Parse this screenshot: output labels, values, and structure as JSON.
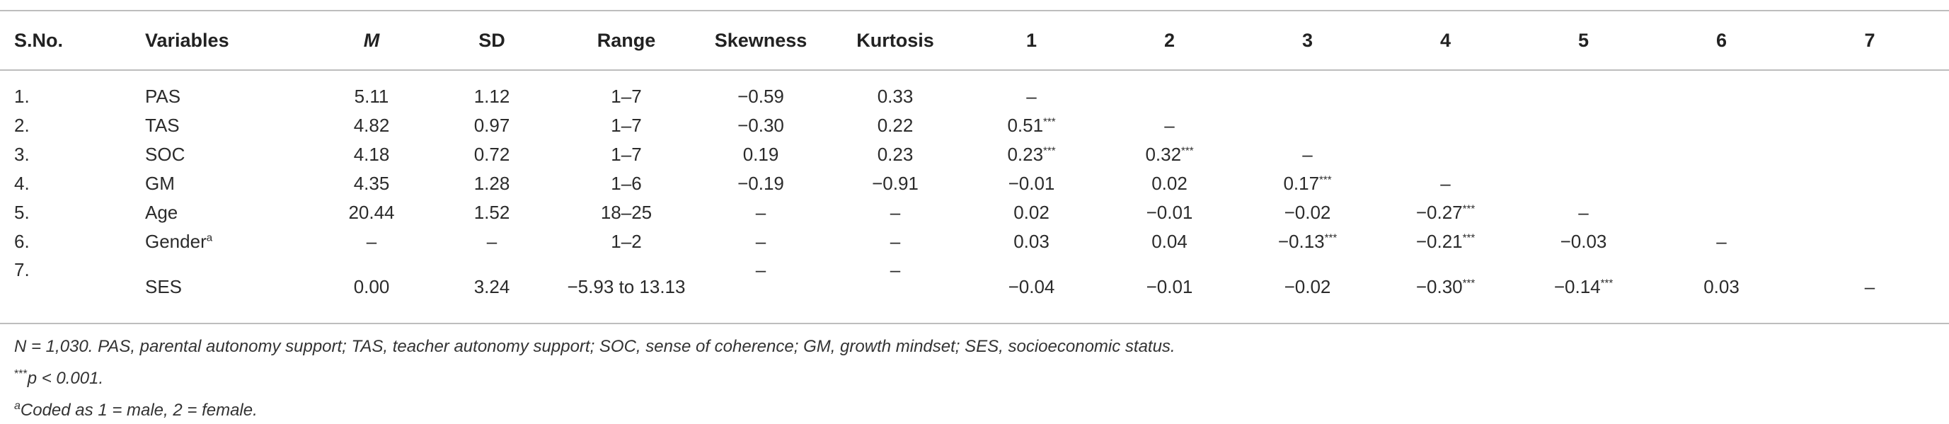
{
  "table": {
    "headers": [
      {
        "label": "S.No.",
        "align": "left",
        "italic": false
      },
      {
        "label": "Variables",
        "align": "left",
        "italic": false
      },
      {
        "label": "M",
        "align": "center",
        "italic": true
      },
      {
        "label": "SD",
        "align": "center",
        "italic": false
      },
      {
        "label": "Range",
        "align": "center",
        "italic": false
      },
      {
        "label": "Skewness",
        "align": "center",
        "italic": false
      },
      {
        "label": "Kurtosis",
        "align": "center",
        "italic": false
      },
      {
        "label": "1",
        "align": "center",
        "italic": false
      },
      {
        "label": "2",
        "align": "center",
        "italic": false
      },
      {
        "label": "3",
        "align": "center",
        "italic": false
      },
      {
        "label": "4",
        "align": "center",
        "italic": false
      },
      {
        "label": "5",
        "align": "center",
        "italic": false
      },
      {
        "label": "6",
        "align": "center",
        "italic": false
      },
      {
        "label": "7",
        "align": "center",
        "italic": false
      }
    ],
    "rows": [
      {
        "sno": "1.",
        "variable": "PAS",
        "variable_sup": "",
        "m": "5.11",
        "sd": "1.12",
        "range": "1–7",
        "skew": "−0.59",
        "kurt": "0.33",
        "corr": [
          {
            "v": "–",
            "sup": ""
          },
          {
            "v": "",
            "sup": ""
          },
          {
            "v": "",
            "sup": ""
          },
          {
            "v": "",
            "sup": ""
          },
          {
            "v": "",
            "sup": ""
          },
          {
            "v": "",
            "sup": ""
          },
          {
            "v": "",
            "sup": ""
          }
        ]
      },
      {
        "sno": "2.",
        "variable": "TAS",
        "variable_sup": "",
        "m": "4.82",
        "sd": "0.97",
        "range": "1–7",
        "skew": "−0.30",
        "kurt": "0.22",
        "corr": [
          {
            "v": "0.51",
            "sup": "***"
          },
          {
            "v": "–",
            "sup": ""
          },
          {
            "v": "",
            "sup": ""
          },
          {
            "v": "",
            "sup": ""
          },
          {
            "v": "",
            "sup": ""
          },
          {
            "v": "",
            "sup": ""
          },
          {
            "v": "",
            "sup": ""
          }
        ]
      },
      {
        "sno": "3.",
        "variable": "SOC",
        "variable_sup": "",
        "m": "4.18",
        "sd": "0.72",
        "range": "1–7",
        "skew": "0.19",
        "kurt": "0.23",
        "corr": [
          {
            "v": "0.23",
            "sup": "***"
          },
          {
            "v": "0.32",
            "sup": "***"
          },
          {
            "v": "–",
            "sup": ""
          },
          {
            "v": "",
            "sup": ""
          },
          {
            "v": "",
            "sup": ""
          },
          {
            "v": "",
            "sup": ""
          },
          {
            "v": "",
            "sup": ""
          }
        ]
      },
      {
        "sno": "4.",
        "variable": "GM",
        "variable_sup": "",
        "m": "4.35",
        "sd": "1.28",
        "range": "1–6",
        "skew": "−0.19",
        "kurt": "−0.91",
        "corr": [
          {
            "v": "−0.01",
            "sup": ""
          },
          {
            "v": "0.02",
            "sup": ""
          },
          {
            "v": "0.17",
            "sup": "***"
          },
          {
            "v": "–",
            "sup": ""
          },
          {
            "v": "",
            "sup": ""
          },
          {
            "v": "",
            "sup": ""
          },
          {
            "v": "",
            "sup": ""
          }
        ]
      },
      {
        "sno": "5.",
        "variable": "Age",
        "variable_sup": "",
        "m": "20.44",
        "sd": "1.52",
        "range": "18–25",
        "skew": "–",
        "kurt": "–",
        "corr": [
          {
            "v": "0.02",
            "sup": ""
          },
          {
            "v": "−0.01",
            "sup": ""
          },
          {
            "v": "−0.02",
            "sup": ""
          },
          {
            "v": "−0.27",
            "sup": "***"
          },
          {
            "v": "–",
            "sup": ""
          },
          {
            "v": "",
            "sup": ""
          },
          {
            "v": "",
            "sup": ""
          }
        ]
      },
      {
        "sno": "6.",
        "variable": "Gender",
        "variable_sup": "a",
        "m": "–",
        "sd": "–",
        "range": "1–2",
        "skew": "–",
        "kurt": "–",
        "corr": [
          {
            "v": "0.03",
            "sup": ""
          },
          {
            "v": "0.04",
            "sup": ""
          },
          {
            "v": "−0.13",
            "sup": "***"
          },
          {
            "v": "−0.21",
            "sup": "***"
          },
          {
            "v": "−0.03",
            "sup": ""
          },
          {
            "v": "–",
            "sup": ""
          },
          {
            "v": "",
            "sup": ""
          }
        ]
      },
      {
        "sno": "7.",
        "variable": "SES",
        "variable_sup": "",
        "m": "0.00",
        "sd": "3.24",
        "range": "−5.93 to 13.13",
        "skew": "–",
        "kurt": "–",
        "corr": [
          {
            "v": "−0.04",
            "sup": ""
          },
          {
            "v": "−0.01",
            "sup": ""
          },
          {
            "v": "−0.02",
            "sup": ""
          },
          {
            "v": "−0.30",
            "sup": "***"
          },
          {
            "v": "−0.14",
            "sup": "***"
          },
          {
            "v": "0.03",
            "sup": ""
          },
          {
            "v": "–",
            "sup": ""
          }
        ]
      }
    ]
  },
  "notes": {
    "line1": "N = 1,030. PAS, parental autonomy support; TAS, teacher autonomy support; SOC, sense of coherence; GM, growth mindset; SES, socioeconomic status.",
    "line2_sup": "***",
    "line2": "p < 0.001.",
    "line3_sup": "a",
    "line3": "Coded as 1 = male, 2 = female."
  }
}
